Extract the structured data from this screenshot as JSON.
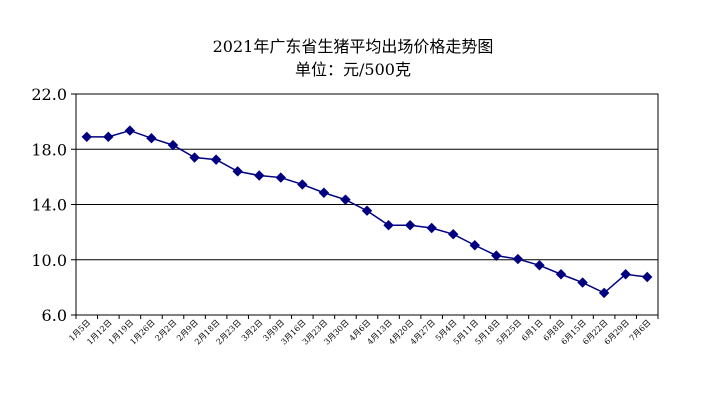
{
  "chart_data": {
    "type": "line",
    "title": "2021年广东省生猪平均出场价格走势图",
    "subtitle": "单位：元/500克",
    "xlabel": "",
    "ylabel": "",
    "ylim": [
      6.0,
      22.0
    ],
    "yticks": [
      "6.0",
      "10.0",
      "14.0",
      "18.0",
      "22.0"
    ],
    "grid": true,
    "legend": "none",
    "categories": [
      "1月5日",
      "1月12日",
      "1月19日",
      "1月26日",
      "2月2日",
      "2月9日",
      "2月18日",
      "2月23日",
      "3月2日",
      "3月9日",
      "3月16日",
      "3月23日",
      "3月30日",
      "4月6日",
      "4月13日",
      "4月20日",
      "4月27日",
      "5月4日",
      "5月11日",
      "5月18日",
      "5月25日",
      "6月1日",
      "6月8日",
      "6月15日",
      "6月22日",
      "6月29日",
      "7月6日"
    ],
    "series": [
      {
        "color": "#000080",
        "values": [
          18.9,
          18.9,
          19.35,
          18.8,
          18.3,
          17.4,
          17.25,
          16.4,
          16.1,
          15.95,
          15.45,
          14.85,
          14.35,
          13.55,
          12.5,
          12.5,
          12.3,
          11.85,
          11.05,
          10.3,
          10.05,
          9.6,
          8.95,
          8.35,
          7.6,
          8.95,
          8.75
        ]
      }
    ]
  }
}
